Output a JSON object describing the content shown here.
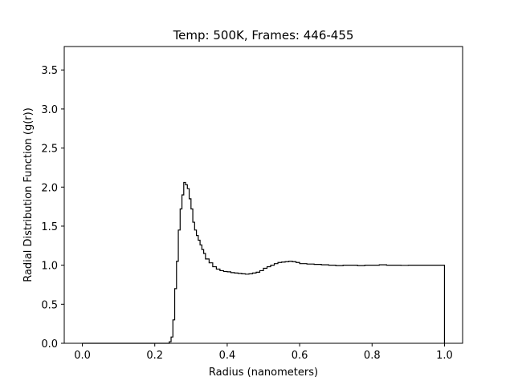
{
  "chart_data": {
    "type": "line",
    "title": "Temp: 500K, Frames: 446-455",
    "xlabel": "Radius (nanometers)",
    "ylabel": "Radial Distribution Function (g(r))",
    "xlim": [
      -0.05,
      1.05
    ],
    "ylim": [
      0,
      3.8
    ],
    "grid": false,
    "xticks": [
      0.0,
      0.2,
      0.4,
      0.6,
      0.8,
      1.0
    ],
    "xtick_labels": [
      "0.0",
      "0.2",
      "0.4",
      "0.6",
      "0.8",
      "1.0"
    ],
    "yticks": [
      0.0,
      0.5,
      1.0,
      1.5,
      2.0,
      2.5,
      3.0,
      3.5
    ],
    "ytick_labels": [
      "0.0",
      "0.5",
      "1.0",
      "1.5",
      "2.0",
      "2.5",
      "3.0",
      "3.5"
    ],
    "series": [
      {
        "name": "g(r)",
        "style": "step",
        "color": "#000000",
        "x": [
          0.0,
          0.24,
          0.245,
          0.25,
          0.255,
          0.26,
          0.265,
          0.27,
          0.275,
          0.28,
          0.285,
          0.29,
          0.295,
          0.3,
          0.305,
          0.31,
          0.315,
          0.32,
          0.325,
          0.33,
          0.335,
          0.34,
          0.35,
          0.36,
          0.37,
          0.38,
          0.39,
          0.4,
          0.41,
          0.42,
          0.43,
          0.44,
          0.45,
          0.46,
          0.47,
          0.48,
          0.49,
          0.5,
          0.51,
          0.52,
          0.53,
          0.54,
          0.55,
          0.56,
          0.57,
          0.58,
          0.59,
          0.6,
          0.62,
          0.64,
          0.66,
          0.68,
          0.7,
          0.72,
          0.74,
          0.76,
          0.78,
          0.8,
          0.82,
          0.84,
          0.86,
          0.88,
          0.9,
          0.92,
          0.94,
          0.96,
          0.98,
          1.0
        ],
        "values": [
          0.0,
          0.02,
          0.08,
          0.3,
          0.7,
          1.05,
          1.45,
          1.72,
          1.9,
          2.06,
          2.03,
          1.98,
          1.85,
          1.72,
          1.55,
          1.45,
          1.38,
          1.32,
          1.26,
          1.2,
          1.15,
          1.08,
          1.03,
          0.98,
          0.95,
          0.93,
          0.92,
          0.915,
          0.905,
          0.9,
          0.895,
          0.89,
          0.885,
          0.89,
          0.9,
          0.91,
          0.93,
          0.96,
          0.98,
          1.0,
          1.02,
          1.035,
          1.04,
          1.045,
          1.05,
          1.045,
          1.035,
          1.02,
          1.015,
          1.01,
          1.005,
          1.0,
          0.995,
          1.0,
          1.0,
          0.995,
          1.0,
          1.0,
          1.005,
          1.0,
          1.0,
          0.998,
          1.0,
          1.0,
          1.0,
          1.0,
          1.0,
          1.0
        ]
      }
    ]
  }
}
